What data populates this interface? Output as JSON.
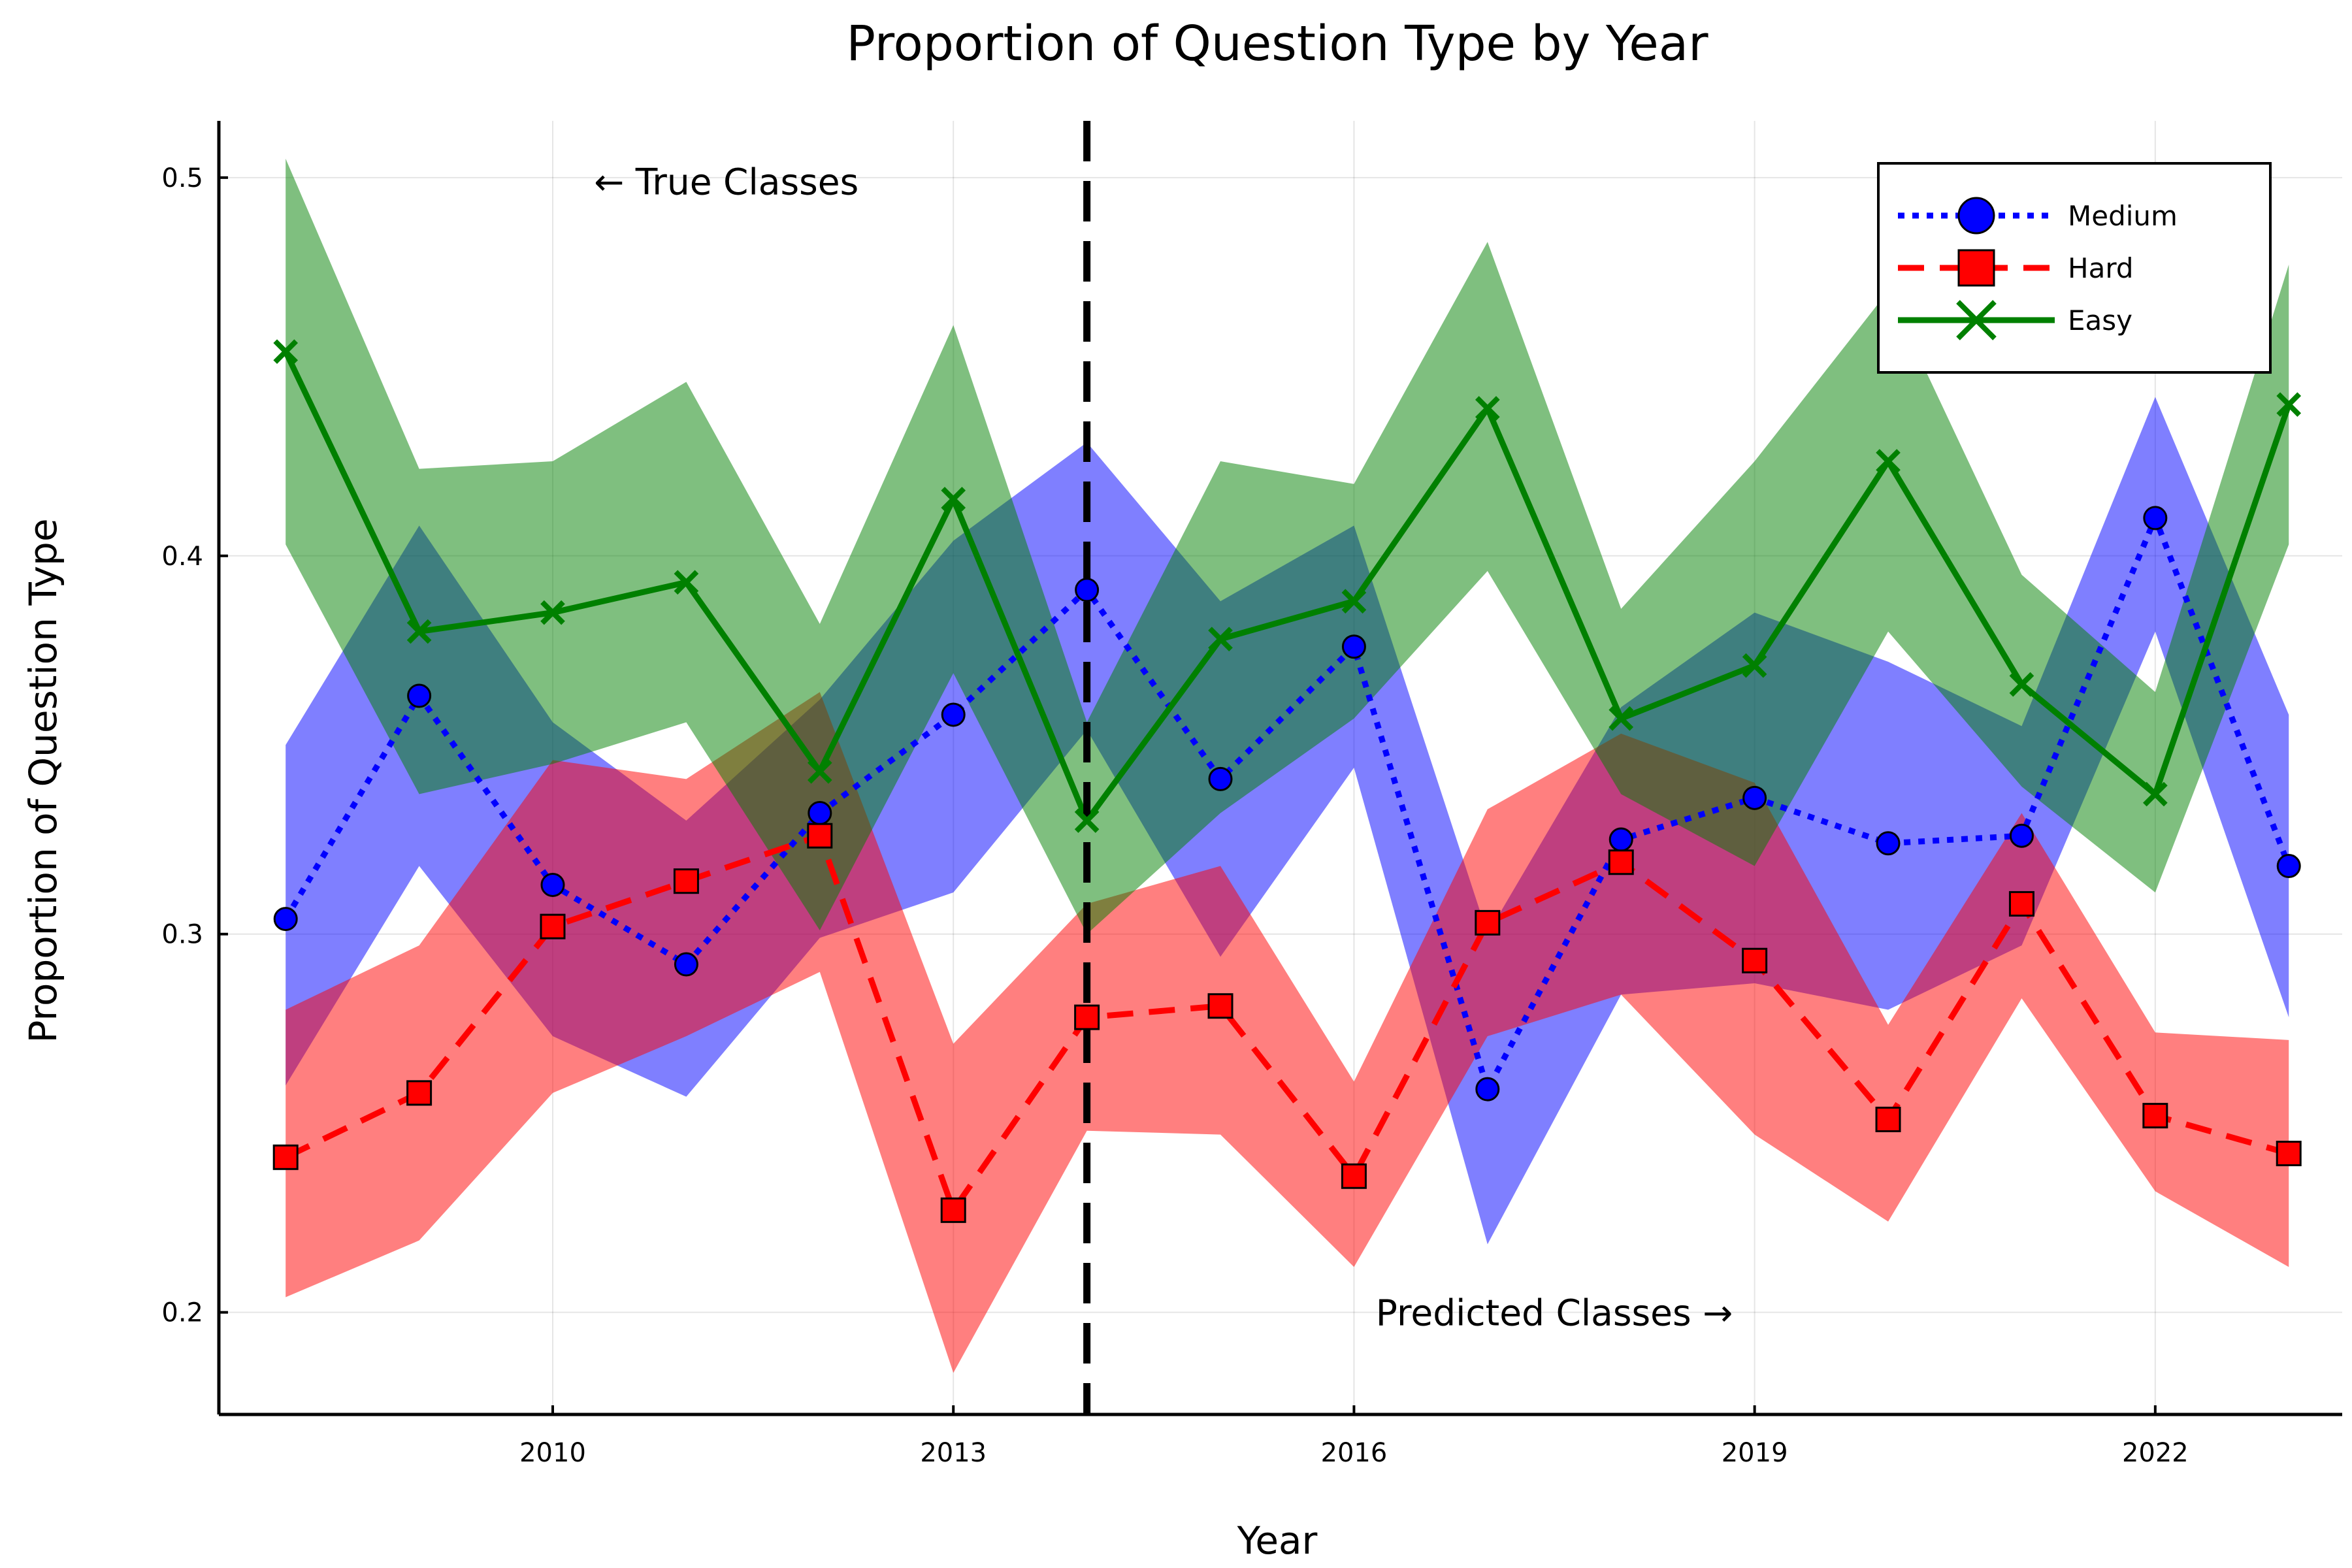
{
  "chart_data": {
    "type": "line",
    "title": "Proportion of Question Type by Year",
    "xlabel": "Year",
    "ylabel": "Proportion of Question Type",
    "xlim": [
      2007.5,
      2023.4
    ],
    "ylim": [
      0.173,
      0.515
    ],
    "xticks": [
      2010,
      2013,
      2016,
      2019,
      2022
    ],
    "yticks": [
      0.2,
      0.3,
      0.4,
      0.5
    ],
    "grid": true,
    "legend_position": "top-right",
    "x": [
      2008,
      2009,
      2010,
      2011,
      2012,
      2013,
      2014,
      2015,
      2016,
      2017,
      2018,
      2019,
      2020,
      2021,
      2022,
      2023
    ],
    "series": [
      {
        "name": "Medium",
        "color": "#0000ff",
        "line_style": "dotted",
        "marker": "circle",
        "values": [
          0.304,
          0.363,
          0.313,
          0.292,
          0.332,
          0.358,
          0.391,
          0.341,
          0.376,
          0.259,
          0.325,
          0.336,
          0.324,
          0.326,
          0.41,
          0.318
        ],
        "lower": [
          0.26,
          0.318,
          0.273,
          0.257,
          0.299,
          0.311,
          0.354,
          0.294,
          0.344,
          0.218,
          0.284,
          0.287,
          0.28,
          0.297,
          0.38,
          0.278
        ],
        "upper": [
          0.35,
          0.408,
          0.356,
          0.33,
          0.362,
          0.404,
          0.43,
          0.388,
          0.408,
          0.3,
          0.36,
          0.385,
          0.372,
          0.355,
          0.442,
          0.358
        ]
      },
      {
        "name": "Hard",
        "color": "#ff0000",
        "line_style": "dashed",
        "marker": "square",
        "values": [
          0.241,
          0.258,
          0.302,
          0.314,
          0.326,
          0.227,
          0.278,
          0.281,
          0.236,
          0.303,
          0.319,
          0.293,
          0.251,
          0.308,
          0.252,
          0.242
        ],
        "lower": [
          0.204,
          0.219,
          0.258,
          0.273,
          0.29,
          0.184,
          0.248,
          0.247,
          0.212,
          0.273,
          0.284,
          0.247,
          0.224,
          0.283,
          0.232,
          0.212
        ],
        "upper": [
          0.28,
          0.297,
          0.346,
          0.341,
          0.364,
          0.271,
          0.308,
          0.318,
          0.261,
          0.333,
          0.353,
          0.34,
          0.276,
          0.332,
          0.274,
          0.272
        ]
      },
      {
        "name": "Easy",
        "color": "#008000",
        "line_style": "solid",
        "marker": "x",
        "values": [
          0.454,
          0.38,
          0.385,
          0.393,
          0.343,
          0.415,
          0.33,
          0.378,
          0.388,
          0.439,
          0.357,
          0.371,
          0.425,
          0.366,
          0.337,
          0.44
        ],
        "lower": [
          0.403,
          0.337,
          0.345,
          0.356,
          0.301,
          0.369,
          0.3,
          0.332,
          0.357,
          0.396,
          0.337,
          0.318,
          0.38,
          0.339,
          0.311,
          0.403
        ],
        "upper": [
          0.505,
          0.423,
          0.425,
          0.446,
          0.382,
          0.461,
          0.356,
          0.425,
          0.419,
          0.483,
          0.386,
          0.425,
          0.47,
          0.395,
          0.364,
          0.477
        ]
      }
    ],
    "vline": {
      "x": 2014,
      "style": "dashed",
      "color": "#000000"
    },
    "annotations": [
      {
        "text": "← True Classes",
        "x": 2011.3,
        "y": 0.499
      },
      {
        "text": "Predicted Classes →",
        "x": 2017.5,
        "y": 0.2
      }
    ]
  }
}
